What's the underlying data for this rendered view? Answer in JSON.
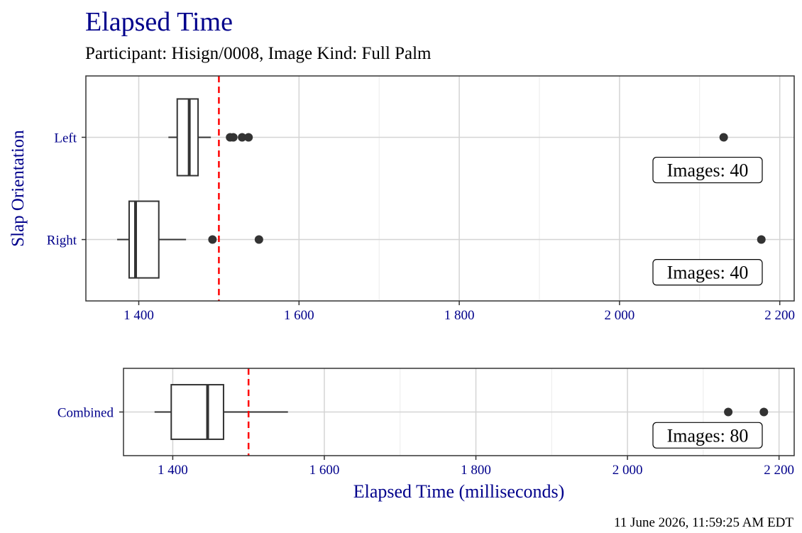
{
  "title": "Elapsed Time",
  "subtitle": "Participant: Hisign/0008, Image Kind: Full Palm",
  "footer": "11 June 2026, 11:59:25 AM EDT",
  "chart_data": [
    {
      "type": "box",
      "ylabel": "Slap Orientation",
      "categories": [
        "Left",
        "Right"
      ],
      "boxes": [
        {
          "whisker_low": 1437,
          "q1": 1448,
          "median": 1463,
          "q3": 1474,
          "whisker_high": 1490,
          "outliers": [
            1514,
            1518,
            1529,
            1537,
            2130
          ]
        },
        {
          "whisker_low": 1373,
          "q1": 1388,
          "median": 1396,
          "q3": 1425,
          "whisker_high": 1459,
          "outliers": [
            1492,
            1550,
            2177
          ]
        }
      ],
      "annotations": [
        "Images: 40",
        "Images: 40"
      ],
      "reference_line": 1500,
      "xlim": [
        1334,
        2218
      ],
      "xticks": [
        {
          "value": 1400,
          "label": "1 400"
        },
        {
          "value": 1600,
          "label": "1 600"
        },
        {
          "value": 1800,
          "label": "1 800"
        },
        {
          "value": 2000,
          "label": "2 000"
        },
        {
          "value": 2200,
          "label": "2 200"
        }
      ],
      "xminorticks": [
        1500,
        1700,
        1900,
        2100
      ],
      "grid": true
    },
    {
      "type": "box",
      "xlabel": "Elapsed Time (milliseconds)",
      "categories": [
        "Combined"
      ],
      "boxes": [
        {
          "whisker_low": 1376,
          "q1": 1398,
          "median": 1446,
          "q3": 1467,
          "whisker_high": 1552,
          "outliers": [
            2133,
            2180
          ]
        }
      ],
      "annotations": [
        "Images: 80"
      ],
      "reference_line": 1500,
      "xlim": [
        1335,
        2220
      ],
      "xticks": [
        {
          "value": 1400,
          "label": "1 400"
        },
        {
          "value": 1600,
          "label": "1 600"
        },
        {
          "value": 1800,
          "label": "1 800"
        },
        {
          "value": 2000,
          "label": "2 000"
        },
        {
          "value": 2200,
          "label": "2 200"
        }
      ],
      "xminorticks": [
        1500,
        1700,
        1900,
        2100
      ],
      "grid": true
    }
  ]
}
